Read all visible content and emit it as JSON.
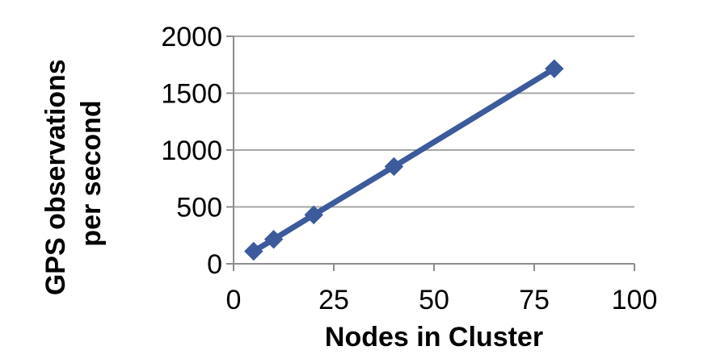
{
  "chart_data": {
    "type": "line",
    "title": "",
    "xlabel": "Nodes in Cluster",
    "ylabel_line1": "GPS observations",
    "ylabel_line2": "per second",
    "xlim": [
      0,
      100
    ],
    "ylim": [
      0,
      2000
    ],
    "x_ticks": [
      0,
      25,
      50,
      75,
      100
    ],
    "y_ticks": [
      0,
      500,
      1000,
      1500,
      2000
    ],
    "x_tick_labels": [
      "0",
      "25",
      "50",
      "75",
      "100"
    ],
    "y_tick_labels": [
      "0",
      "500",
      "1000",
      "1500",
      "2000"
    ],
    "grid": "horizontal",
    "legend": "none",
    "series": [
      {
        "x": [
          5,
          10,
          20,
          40,
          80
        ],
        "values": [
          110,
          215,
          430,
          855,
          1715
        ],
        "color": "#3C5A9C",
        "marker": "diamond"
      }
    ]
  },
  "colors": {
    "series_line": "#3C5A9C",
    "grid": "#A6A6A6",
    "axis": "#8C8C8C",
    "text": "#000000"
  }
}
